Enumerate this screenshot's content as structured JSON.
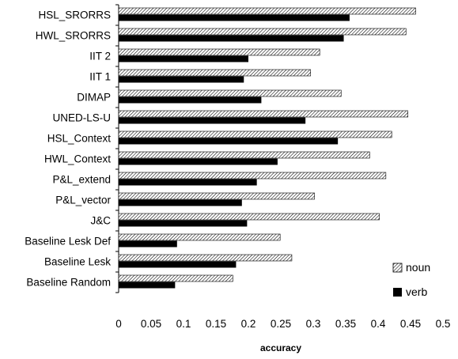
{
  "chart_data": {
    "type": "bar",
    "orientation": "horizontal",
    "title": "",
    "xlabel": "accuracy",
    "ylabel": "",
    "xlim": [
      0,
      0.5
    ],
    "xticks": [
      "0",
      "0.05",
      "0.1",
      "0.15",
      "0.2",
      "0.25",
      "0.3",
      "0.35",
      "0.4",
      "0.45",
      "0.5"
    ],
    "grid": false,
    "legend_position": "right",
    "categories": [
      "HSL_SRORRS",
      "HWL_SRORRS",
      "IIT 2",
      "IIT 1",
      "DIMAP",
      "UNED-LS-U",
      "HSL_Context",
      "HWL_Context",
      "P&L_extend",
      "P&L_vector",
      "J&C",
      "Baseline Lesk Def",
      "Baseline Lesk",
      "Baseline Random"
    ],
    "series": [
      {
        "name": "noun",
        "pattern": "hatched",
        "color": "#000000",
        "values": [
          0.458,
          0.443,
          0.31,
          0.296,
          0.343,
          0.446,
          0.421,
          0.387,
          0.412,
          0.302,
          0.402,
          0.249,
          0.267,
          0.176
        ]
      },
      {
        "name": "verb",
        "pattern": "solid",
        "color": "#000000",
        "values": [
          0.356,
          0.347,
          0.2,
          0.193,
          0.22,
          0.288,
          0.338,
          0.245,
          0.213,
          0.19,
          0.198,
          0.09,
          0.181,
          0.087
        ]
      }
    ]
  }
}
